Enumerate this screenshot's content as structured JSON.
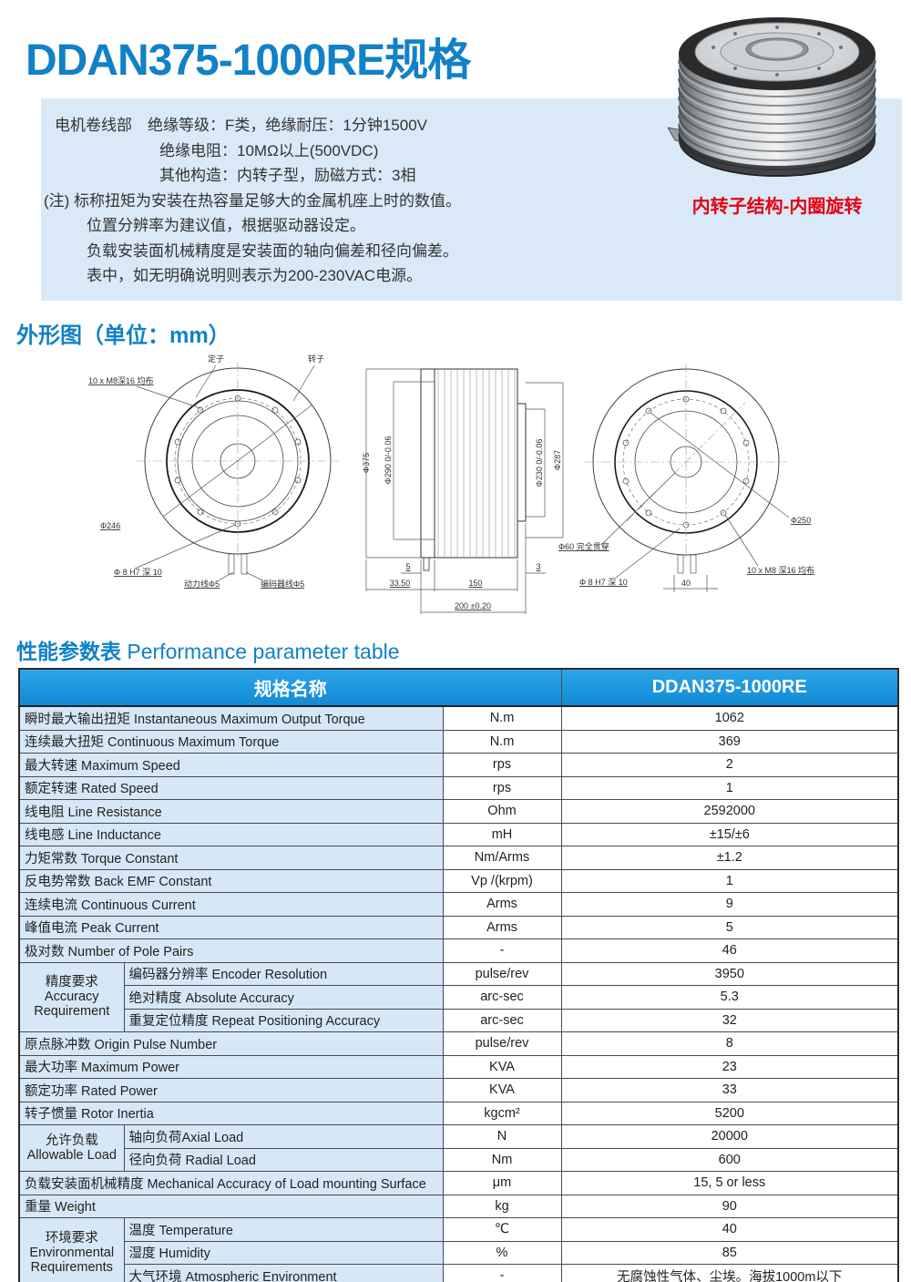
{
  "title": "DDAN375-1000RE规格",
  "colors": {
    "accent_blue": "#1181C8",
    "table_header_blue": "#1E97DE",
    "light_blue_bg": "#D9E9F7",
    "row_label_blue": "#D6E8F7",
    "caption_red": "#E60012"
  },
  "info": {
    "lines": [
      "电机卷线部　绝缘等级：F类，绝缘耐压：1分钟1500V",
      "绝缘电阻：10MΩ以上(500VDC)",
      "其他构造：内转子型，励磁方式：3相",
      "(注) 标称扭矩为安装在热容量足够大的金属机座上时的数值。",
      "位置分辨率为建议值，根据驱动器设定。",
      "负载安装面机械精度是安装面的轴向偏差和径向偏差。",
      "表中，如无明确说明则表示为200-230VAC电源。"
    ]
  },
  "photo_caption": "内转子结构-内圈旋转",
  "outline_heading": "外形图（单位：mm）",
  "perf_heading": {
    "zh": "性能参数表",
    "en": " Performance parameter table"
  },
  "drawings": {
    "left": {
      "stator": "定子",
      "rotor": "转子",
      "bolt_note": "10 x M8深16 均布",
      "dia246": "Φ246",
      "pin_note": "Φ 8 H7 深 10",
      "power_wire": "动力线Φ5",
      "encoder_wire": "编码器线Φ5"
    },
    "middle": {
      "dia375": "Φ375",
      "dia290": "Φ290 0/-0.06",
      "dia230": "Φ230 0/-0.06",
      "dia287": "Φ287",
      "dim5": "5",
      "dim3350": "33.50",
      "dim150": "150",
      "dim3": "3",
      "dim200": "200 ±0.20"
    },
    "right": {
      "dia60_note": "Φ60 完全贯穿",
      "dia250": "Φ250",
      "bolt_note": "10 x M8 深16 均布",
      "pin_note": "Φ 8 H7 深 10",
      "dim40": "40"
    }
  },
  "table": {
    "header": {
      "left": "规格名称",
      "right": "DDAN375-1000RE"
    },
    "rows": [
      {
        "label": "瞬时最大输出扭矩  Instantaneous Maximum Output Torque",
        "unit": "N.m",
        "value": "1062"
      },
      {
        "label": "连续最大扭矩 Continuous Maximum Torque",
        "unit": "N.m",
        "value": "369"
      },
      {
        "label": "最大转速 Maximum Speed",
        "unit": "rps",
        "value": "2"
      },
      {
        "label": "额定转速 Rated Speed",
        "unit": "rps",
        "value": "1"
      },
      {
        "label": "线电阻 Line Resistance",
        "unit": "Ohm",
        "value": "2592000"
      },
      {
        "label": "线电感 Line Inductance",
        "unit": "mH",
        "value": "±15/±6"
      },
      {
        "label": "力矩常数 Torque Constant",
        "unit": "Nm/Arms",
        "value": "±1.2"
      },
      {
        "label": "反电势常数 Back EMF Constant",
        "unit": "Vp /(krpm)",
        "value": "1"
      },
      {
        "label": "连续电流 Continuous Current",
        "unit": "Arms",
        "value": "9"
      },
      {
        "label": "峰值电流 Peak Current",
        "unit": "Arms",
        "value": "5"
      },
      {
        "label": "极对数 Number of Pole Pairs",
        "unit": "-",
        "value": "46"
      },
      {
        "group": {
          "lines": [
            "精度要求",
            "Accuracy",
            "Requirement"
          ],
          "span": 3
        },
        "in_group": true,
        "label": "编码器分辨率 Encoder Resolution",
        "unit": "pulse/rev",
        "value": "3950"
      },
      {
        "in_group": true,
        "label": "绝对精度 Absolute Accuracy",
        "unit": "arc-sec",
        "value": "5.3"
      },
      {
        "in_group": true,
        "label": "重复定位精度 Repeat Positioning Accuracy",
        "unit": "arc-sec",
        "value": "32"
      },
      {
        "label": "原点脉冲数 Origin Pulse Number",
        "unit": "pulse/rev",
        "value": "8"
      },
      {
        "label": "最大功率 Maximum Power",
        "unit": "KVA",
        "value": "23"
      },
      {
        "label": "额定功率 Rated Power",
        "unit": "KVA",
        "value": "33"
      },
      {
        "label": "转子惯量  Rotor Inertia",
        "unit": "kgcm²",
        "value": "5200"
      },
      {
        "group": {
          "lines": [
            "允许负载",
            "Allowable Load"
          ],
          "span": 2
        },
        "in_group": true,
        "label": "轴向负荷Axial Load",
        "unit": "N",
        "value": "20000"
      },
      {
        "in_group": true,
        "label": "径向负荷 Radial Load",
        "unit": "Nm",
        "value": "600"
      },
      {
        "label": "负载安装面机械精度 Mechanical Accuracy of Load mounting Surface",
        "unit": "μm",
        "value": "15, 5 or less"
      },
      {
        "label": "重量 Weight",
        "unit": "kg",
        "value": "90"
      },
      {
        "group": {
          "lines": [
            "环境要求",
            "Environmental",
            "Requirements"
          ],
          "span": 3
        },
        "in_group": true,
        "label": "温度 Temperature",
        "unit": "℃",
        "value": "40"
      },
      {
        "in_group": true,
        "label": "湿度 Humidity",
        "unit": "%",
        "value": "85"
      },
      {
        "in_group": true,
        "label": "大气环境 Atmospheric Environment",
        "unit": "-",
        "value": "无腐蚀性气体、尘埃。海拔1000m以下"
      }
    ]
  }
}
